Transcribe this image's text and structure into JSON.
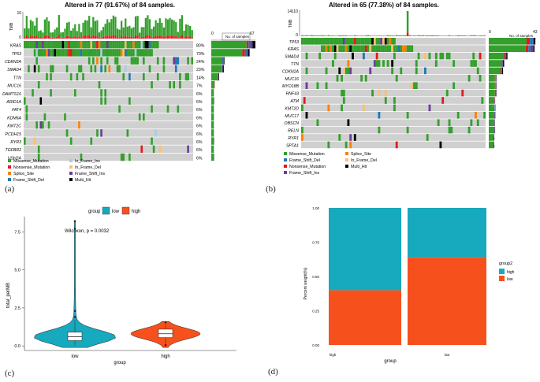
{
  "panels": {
    "a": {
      "letter": "(a)",
      "title": "Altered in 77 (91.67%) of 84 samples.",
      "tmb_label": "TMB",
      "tmb_ticks": [
        "10",
        "0"
      ],
      "samples_axis": {
        "label": "No. of samples",
        "min": "0",
        "max": "67"
      },
      "genes": [
        "KRAS",
        "TP53",
        "CDKN2A",
        "SMAD4",
        "TTN",
        "MUC16",
        "DAMTS16",
        "ARID1A",
        "FAT4",
        "KDM6A",
        "KMT2C",
        "PCDH15",
        "RYR3",
        "TGFBR2",
        "USH2A"
      ],
      "percents": [
        "80%",
        "70%",
        "24%",
        "23%",
        "14%",
        "7%",
        "6%",
        "6%",
        "6%",
        "6%",
        "6%",
        "6%",
        "6%",
        "6%",
        "6%"
      ],
      "legend": [
        {
          "label": "Missense_Mutation",
          "color": "#33a02c"
        },
        {
          "label": "In_Frame_Ins",
          "color": "#a6cee3"
        },
        {
          "label": "Nonsense_Mutation",
          "color": "#e31a1c"
        },
        {
          "label": "In_Frame_Del",
          "color": "#fdbf6f"
        },
        {
          "label": "Splice_Site",
          "color": "#ff7f00"
        },
        {
          "label": "Frame_Shift_Ins",
          "color": "#6a3d9a"
        },
        {
          "label": "Frame_Shift_Del",
          "color": "#1f78b4"
        },
        {
          "label": "Multi_Hit",
          "color": "#000000"
        }
      ]
    },
    "b": {
      "letter": "(b)",
      "title": "Altered in 65 (77.38%) of 84 samples.",
      "tmb_label": "TMB",
      "tmb_ticks": [
        "14110",
        "0"
      ],
      "samples_axis": {
        "label": "No. of samples",
        "min": "0",
        "max": "43"
      },
      "genes": [
        "TP53",
        "KRAS",
        "SMAD4",
        "TTN",
        "CDKN2A",
        "MUC16",
        "MYO18B",
        "RNF43",
        "ATM",
        "KMT2D",
        "MUC17",
        "OBSCN",
        "RELN",
        "RYR1",
        "SPTA1"
      ],
      "percents": [
        "51%",
        "50%",
        "20%",
        "17%",
        "15%",
        "8%",
        "8%",
        "8%",
        "7%",
        "7%",
        "7%",
        "7%",
        "7%",
        "6%",
        "6%"
      ],
      "legend": [
        {
          "label": "Missense_Mutation",
          "color": "#33a02c"
        },
        {
          "label": "Splice_Site",
          "color": "#ff7f00"
        },
        {
          "label": "Frame_Shift_Del",
          "color": "#1f78b4"
        },
        {
          "label": "In_Frame_Del",
          "color": "#fdbf6f"
        },
        {
          "label": "Nonsense_Mutation",
          "color": "#e31a1c"
        },
        {
          "label": "Multi_Hit",
          "color": "#000000"
        },
        {
          "label": "Frame_Shift_Ins",
          "color": "#6a3d9a"
        }
      ]
    },
    "c": {
      "letter": "(c)",
      "legend_title": "group",
      "legend": [
        {
          "label": "low",
          "color": "#17a9be"
        },
        {
          "label": "high",
          "color": "#f6511d"
        }
      ],
      "annotation": "Wilcoxon, p = 0.0032",
      "ylabel": "total_perMB",
      "xlabel": "group",
      "categories": [
        "low",
        "high"
      ],
      "yticks": [
        "0.0",
        "2.5",
        "5.0",
        "7.5"
      ]
    },
    "d": {
      "letter": "(d)",
      "ylabel": "Percent weight(%)",
      "xlabel": "group",
      "categories": [
        "high",
        "low"
      ],
      "yticks": [
        "0.00",
        "0.25",
        "0.50",
        "0.75",
        "1.00"
      ],
      "legend_title": "group2",
      "legend": [
        {
          "label": "high",
          "color": "#17a9be"
        },
        {
          "label": "low",
          "color": "#f6511d"
        }
      ]
    }
  },
  "chart_data": [
    {
      "type": "heatmap",
      "title": "Altered in 77 (91.67%) of 84 samples.",
      "genes": [
        "KRAS",
        "TP53",
        "CDKN2A",
        "SMAD4",
        "TTN",
        "MUC16",
        "DAMTS16",
        "ARID1A",
        "FAT4",
        "KDM6A",
        "KMT2C",
        "PCDH15",
        "RYR3",
        "TGFBR2",
        "USH2A"
      ],
      "altered_percent": [
        80,
        70,
        24,
        23,
        14,
        7,
        6,
        6,
        6,
        6,
        6,
        6,
        6,
        6,
        6
      ],
      "n_samples": 84,
      "samples_axis_max": 67,
      "tmb_axis_max": 10
    },
    {
      "type": "heatmap",
      "title": "Altered in 65 (77.38%) of 84 samples.",
      "genes": [
        "TP53",
        "KRAS",
        "SMAD4",
        "TTN",
        "CDKN2A",
        "MUC16",
        "MYO18B",
        "RNF43",
        "ATM",
        "KMT2D",
        "MUC17",
        "OBSCN",
        "RELN",
        "RYR1",
        "SPTA1"
      ],
      "altered_percent": [
        51,
        50,
        20,
        17,
        15,
        8,
        8,
        8,
        7,
        7,
        7,
        7,
        7,
        6,
        6
      ],
      "n_samples": 84,
      "samples_axis_max": 43,
      "tmb_axis_max": 14110
    },
    {
      "type": "violin",
      "categories": [
        "low",
        "high"
      ],
      "ylabel": "total_perMB",
      "xlabel": "group",
      "ylim": [
        0,
        8.5
      ],
      "medians": [
        0.6,
        0.8
      ],
      "max_outlier": 8.2,
      "annotation": "Wilcoxon, p = 0.0032"
    },
    {
      "type": "bar",
      "stacked": true,
      "categories": [
        "high",
        "low"
      ],
      "series": [
        {
          "name": "low",
          "values": [
            0.4,
            0.64
          ]
        },
        {
          "name": "high",
          "values": [
            0.6,
            0.36
          ]
        }
      ],
      "ylabel": "Percent weight(%)",
      "xlabel": "group",
      "ylim": [
        0,
        1
      ]
    }
  ]
}
